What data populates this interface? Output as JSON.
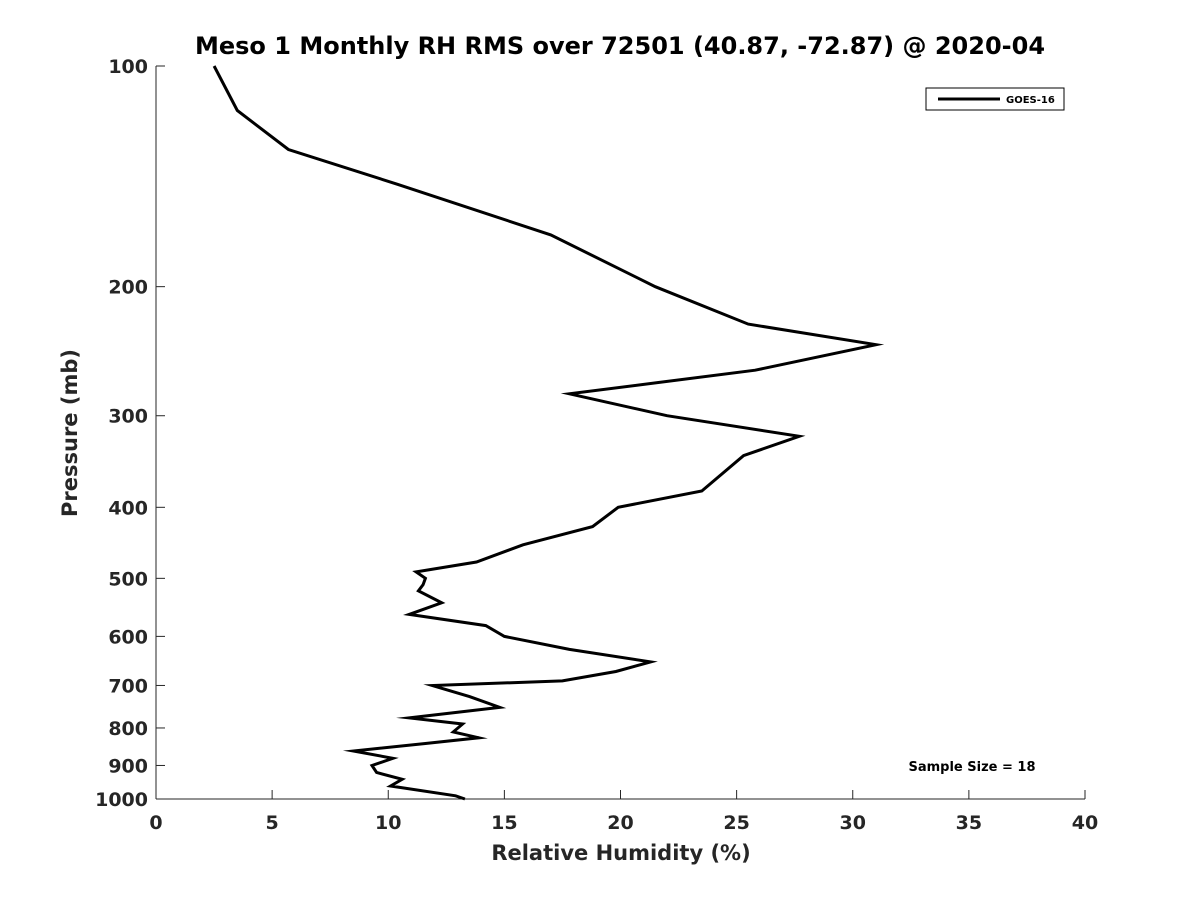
{
  "chart_data": {
    "type": "line",
    "title": "Meso 1 Monthly RH RMS over 72501 (40.87, -72.87) @ 2020-04",
    "xlabel": "Relative Humidity (%)",
    "ylabel": "Pressure (mb)",
    "xlim": [
      0,
      40
    ],
    "ylim": [
      100,
      1000
    ],
    "y_scale": "log",
    "y_reversed": true,
    "x_ticks": [
      0,
      5,
      10,
      15,
      20,
      25,
      30,
      35,
      40
    ],
    "y_ticks": [
      100,
      200,
      300,
      400,
      500,
      600,
      700,
      800,
      900,
      1000
    ],
    "grid": false,
    "legend_position": "top-right",
    "series": [
      {
        "name": "GOES-16",
        "color": "#000000",
        "x": [
          2.5,
          3.5,
          5.7,
          10.4,
          17.0,
          21.5,
          25.5,
          31.0,
          25.8,
          17.8,
          22.0,
          27.7,
          25.3,
          23.5,
          19.9,
          18.8,
          15.8,
          13.8,
          11.2,
          11.6,
          11.5,
          11.3,
          12.3,
          10.9,
          14.2,
          15.0,
          17.8,
          21.3,
          19.8,
          17.5,
          11.9,
          13.5,
          14.8,
          10.9,
          13.2,
          12.8,
          13.9,
          11.6,
          8.5,
          10.2,
          9.3,
          9.5,
          10.6,
          10.1,
          12.9,
          13.3
        ],
        "y": [
          100,
          115,
          130,
          145,
          170,
          200,
          225,
          240,
          260,
          280,
          300,
          320,
          340,
          380,
          400,
          425,
          450,
          475,
          490,
          500,
          510,
          520,
          540,
          560,
          580,
          600,
          625,
          650,
          670,
          690,
          700,
          725,
          750,
          775,
          790,
          810,
          825,
          840,
          860,
          880,
          900,
          920,
          940,
          960,
          990,
          1000
        ]
      }
    ],
    "annotation": "Sample Size = 18"
  }
}
